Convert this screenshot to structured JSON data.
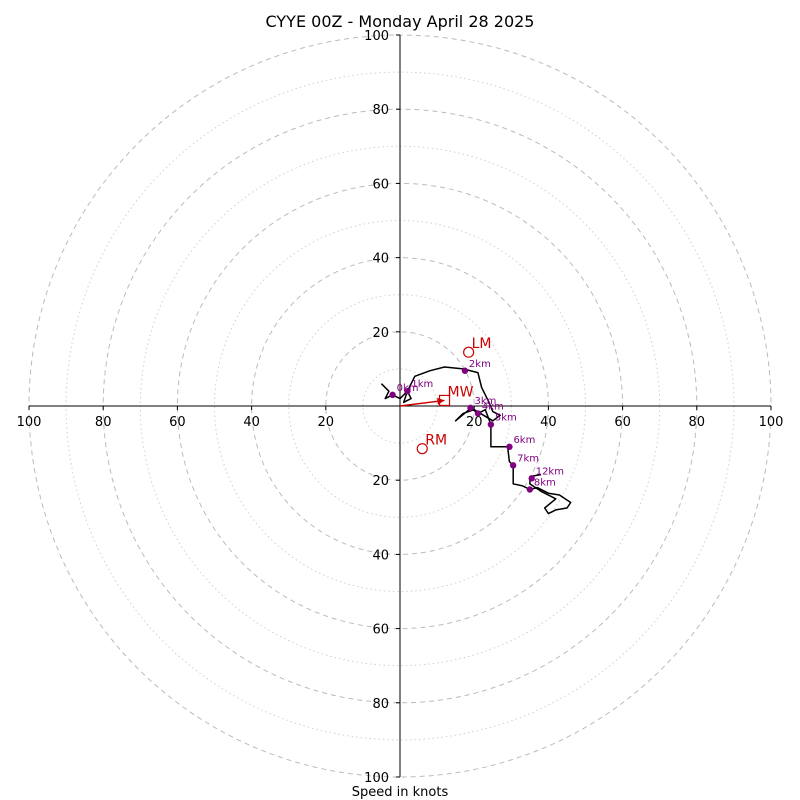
{
  "chart_data": {
    "type": "scatter",
    "subtype": "hodograph",
    "title": "CYYE 00Z - Monday April 28 2025",
    "xlabel": "Speed in knots",
    "ylabel": "",
    "xlim": [
      -100,
      100
    ],
    "ylim": [
      -100,
      100
    ],
    "ticks_x": [
      {
        "value": -100,
        "label": "100"
      },
      {
        "value": -80,
        "label": "80"
      },
      {
        "value": -60,
        "label": "60"
      },
      {
        "value": -40,
        "label": "40"
      },
      {
        "value": -20,
        "label": "20"
      },
      {
        "value": 20,
        "label": "20"
      },
      {
        "value": 40,
        "label": "40"
      },
      {
        "value": 60,
        "label": "60"
      },
      {
        "value": 80,
        "label": "80"
      },
      {
        "value": 100,
        "label": "100"
      }
    ],
    "ticks_y": [
      {
        "value": 100,
        "label": "100"
      },
      {
        "value": 80,
        "label": "80"
      },
      {
        "value": 60,
        "label": "60"
      },
      {
        "value": 40,
        "label": "40"
      },
      {
        "value": 20,
        "label": "20"
      },
      {
        "value": -20,
        "label": "20"
      },
      {
        "value": -40,
        "label": "40"
      },
      {
        "value": -60,
        "label": "60"
      },
      {
        "value": -80,
        "label": "80"
      },
      {
        "value": -100,
        "label": "100"
      }
    ],
    "rings_dashed": [
      20,
      40,
      60,
      80,
      100
    ],
    "rings_dotted": [
      10,
      30,
      50,
      70,
      90
    ],
    "grid": true,
    "colors": {
      "trace": "#000000",
      "height_points": "#800080",
      "motion": "#cc0000",
      "grid": "#bbbbbb",
      "axis": "#000000"
    },
    "hodograph_trace": [
      [
        -5,
        6
      ],
      [
        -3,
        4
      ],
      [
        -4,
        2
      ],
      [
        -2,
        3
      ],
      [
        0,
        2
      ],
      [
        2,
        4
      ],
      [
        3,
        2
      ],
      [
        1,
        1
      ],
      [
        2,
        4
      ],
      [
        4,
        8
      ],
      [
        8,
        9.5
      ],
      [
        12,
        10.5
      ],
      [
        17,
        10
      ],
      [
        21,
        9
      ],
      [
        22,
        5
      ],
      [
        24,
        1
      ],
      [
        25,
        -1.5
      ],
      [
        27,
        -2.5
      ],
      [
        25,
        -4
      ],
      [
        20,
        -1
      ],
      [
        17,
        -2
      ],
      [
        15,
        -4
      ],
      [
        18,
        -1.5
      ],
      [
        19,
        -0.5
      ],
      [
        21,
        -2
      ],
      [
        23,
        -1
      ],
      [
        24.5,
        -5
      ],
      [
        24.5,
        -11
      ],
      [
        29,
        -11
      ],
      [
        29.5,
        -15
      ],
      [
        30.5,
        -16
      ],
      [
        30.5,
        -21
      ],
      [
        33,
        -21.5
      ],
      [
        35,
        -22.5
      ],
      [
        37,
        -22
      ],
      [
        40,
        -23.5
      ],
      [
        43,
        -24
      ],
      [
        46,
        -26
      ],
      [
        45,
        -27.5
      ],
      [
        42,
        -28
      ],
      [
        40,
        -29
      ],
      [
        39,
        -27.5
      ],
      [
        42,
        -25
      ],
      [
        38,
        -23
      ],
      [
        35,
        -21
      ],
      [
        35,
        -19
      ],
      [
        38,
        -18.5
      ]
    ],
    "height_points": [
      {
        "label": "0km",
        "u": -2,
        "v": 3
      },
      {
        "label": "1km",
        "u": 2,
        "v": 4
      },
      {
        "label": "2km",
        "u": 17.5,
        "v": 9.5
      },
      {
        "label": "3km",
        "u": 19,
        "v": -0.5
      },
      {
        "label": "4km",
        "u": 21,
        "v": -2
      },
      {
        "label": "5km",
        "u": 24.5,
        "v": -5
      },
      {
        "label": "6km",
        "u": 29.5,
        "v": -11
      },
      {
        "label": "7km",
        "u": 30.5,
        "v": -16
      },
      {
        "label": "8km",
        "u": 35,
        "v": -22.5
      },
      {
        "label": "12km",
        "u": 35.5,
        "v": -19.5
      }
    ],
    "motion_markers": [
      {
        "label": "LM",
        "u": 18.5,
        "v": 14.5,
        "shape": "circle"
      },
      {
        "label": "MW",
        "u": 12,
        "v": 1.5,
        "shape": "square"
      },
      {
        "label": "RM",
        "u": 6,
        "v": -11.5,
        "shape": "circle"
      }
    ],
    "motion_arrow": {
      "from": [
        0,
        0
      ],
      "to": [
        12,
        1.5
      ]
    }
  }
}
